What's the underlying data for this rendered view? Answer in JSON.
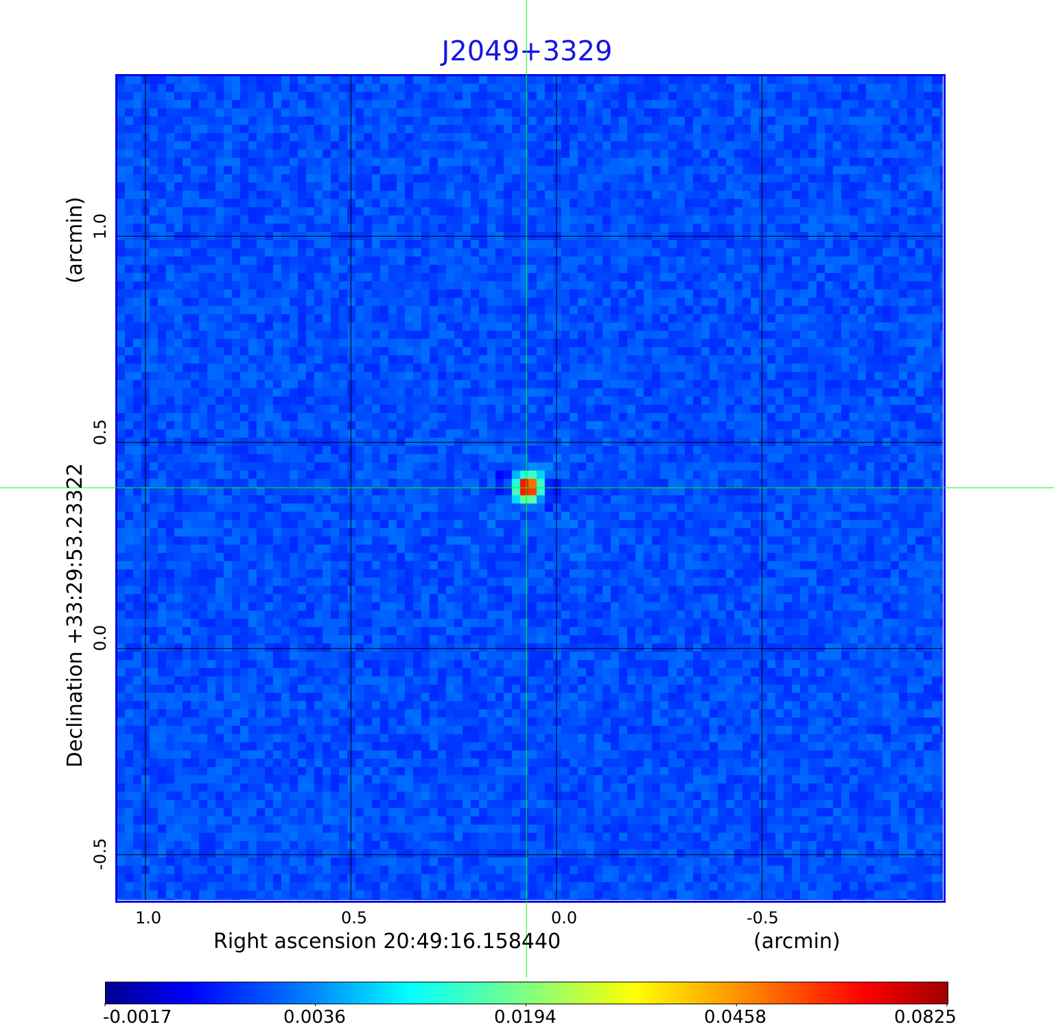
{
  "chart_data": {
    "type": "heatmap",
    "title": "J2049+3329",
    "xlabel": "Right ascension  20:49:16.158440",
    "xunit": "(arcmin)",
    "ylabel": "Declination  +33:29:53.23322",
    "yunit": "(arcmin)",
    "x_ticks": [
      "1.0",
      "0.5",
      "0.0",
      "-0.5"
    ],
    "y_ticks": [
      "1.0",
      "0.5",
      "0.0",
      "-0.5"
    ],
    "x_tick_values": [
      1.0,
      0.5,
      0.0,
      -0.5
    ],
    "y_tick_values": [
      1.0,
      0.5,
      0.0,
      -0.5
    ],
    "xlim": [
      1.07,
      -0.94
    ],
    "ylim": [
      -0.61,
      1.39
    ],
    "grid": true,
    "grid_color": "#000000",
    "crosshair": {
      "x": 0.073,
      "y": 0.39,
      "color": "#00ff00"
    },
    "source_peak": {
      "x": 0.07,
      "y": 0.39,
      "value": 0.0825
    },
    "colormap": "jet",
    "colorbar": {
      "ticks": [
        "-0.0017",
        "0.0036",
        "0.0194",
        "0.0458",
        "0.0825"
      ],
      "min": -0.0017,
      "max": 0.0825,
      "placement": "bottom"
    },
    "title_color": "#1414e6"
  }
}
